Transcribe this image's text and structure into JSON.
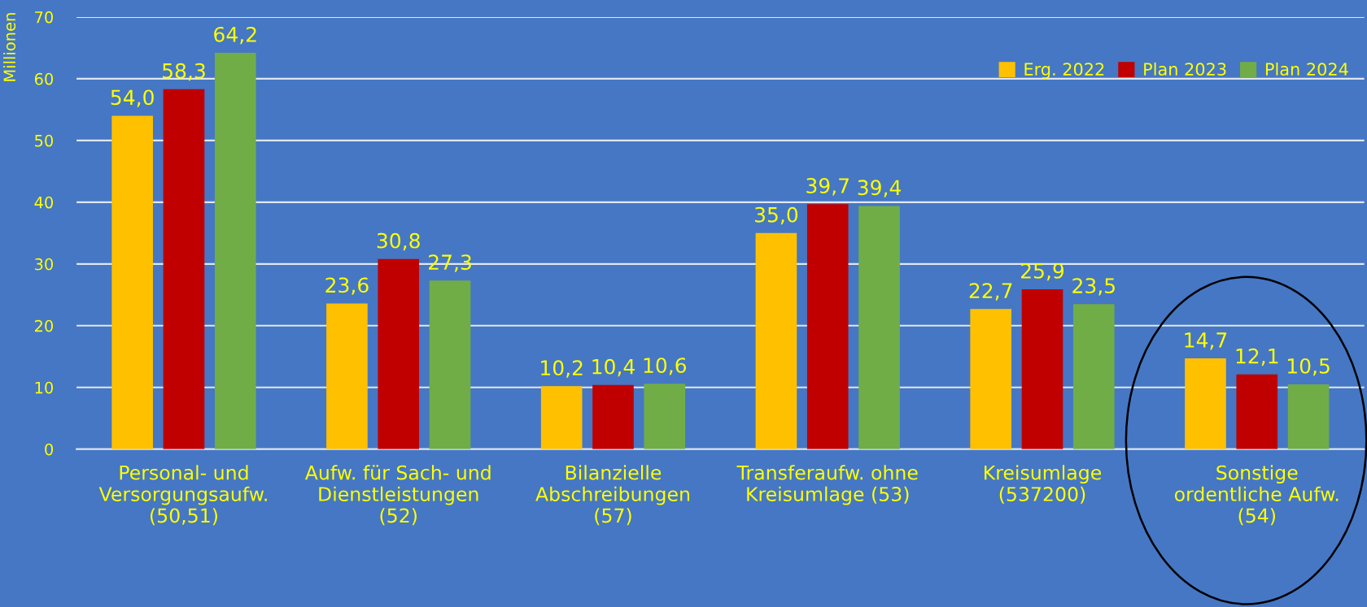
{
  "chart_data": {
    "type": "bar",
    "ylabel": "Millionen",
    "categories": [
      "Personal- und\nVersorgungsaufw.\n(50,51)",
      "Aufw. für Sach- und\nDienstleistungen\n(52)",
      "Bilanzielle\nAbschreibungen\n(57)",
      "Transferaufw. ohne\nKreisumlage (53)",
      "Kreisumlage\n(537200)",
      "Sonstige\nordentliche Aufw.\n(54)"
    ],
    "series": [
      {
        "name": "Erg. 2022",
        "color": "#ffc000",
        "values": [
          54.0,
          23.6,
          10.2,
          35.0,
          22.7,
          14.7
        ],
        "value_labels": [
          "54,0",
          "23,6",
          "10,2",
          "35,0",
          "22,7",
          "14,7"
        ]
      },
      {
        "name": "Plan 2023",
        "color": "#c00000",
        "values": [
          58.3,
          30.8,
          10.4,
          39.7,
          25.9,
          12.1
        ],
        "value_labels": [
          "58,3",
          "30,8",
          "10,4",
          "39,7",
          "25,9",
          "12,1"
        ]
      },
      {
        "name": "Plan 2024",
        "color": "#70ad47",
        "values": [
          64.2,
          27.3,
          10.6,
          39.4,
          23.5,
          10.5
        ],
        "value_labels": [
          "64,2",
          "27,3",
          "10,6",
          "39,4",
          "23,5",
          "10,5"
        ]
      }
    ],
    "ylim": [
      0,
      70
    ],
    "yticks": [
      0,
      10,
      20,
      30,
      40,
      50,
      60,
      70
    ],
    "grid": "y",
    "legend": "top right"
  }
}
